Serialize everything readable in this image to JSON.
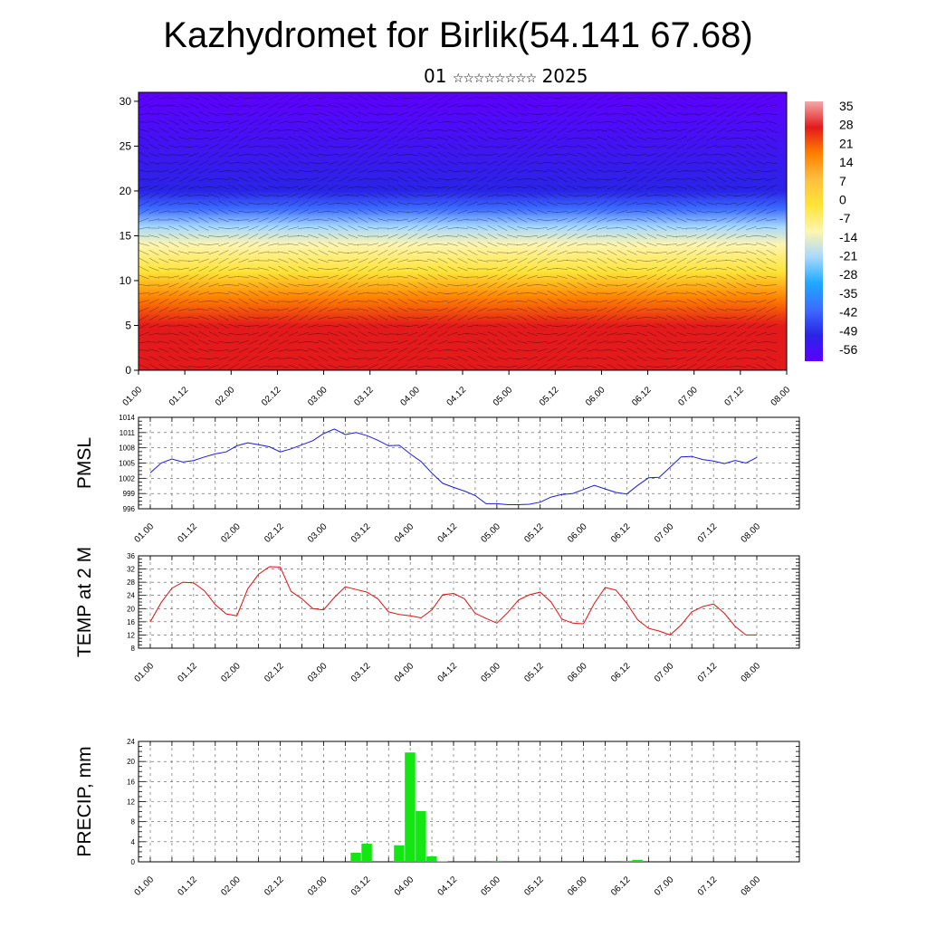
{
  "title": "Kazhydromet for Birlik(54.141 67.68)",
  "subtitle": {
    "day": "01",
    "month_glyphs": "☆☆☆☆☆☆☆☆",
    "year": "2025"
  },
  "time_axis_labels": [
    "01.00",
    "01.12",
    "02.00",
    "02.12",
    "03.00",
    "03.12",
    "04.00",
    "04.12",
    "05.00",
    "05.12",
    "06.00",
    "06.12",
    "07.00",
    "07.12",
    "08.00"
  ],
  "chart_data": [
    {
      "type": "heatmap",
      "name": "cross-section",
      "x_ticks": [
        "01.00",
        "01.12",
        "02.00",
        "02.12",
        "03.00",
        "03.12",
        "04.00",
        "04.12",
        "05.00",
        "05.12",
        "06.00",
        "06.12",
        "07.00",
        "07.12",
        "08.00"
      ],
      "y_ticks": [
        0,
        5,
        10,
        15,
        20,
        25,
        30
      ],
      "ylim": [
        0,
        31
      ],
      "colorbar": {
        "labels": [
          "35",
          "28",
          "21",
          "14",
          "7",
          "0",
          "-7",
          "-14",
          "-21",
          "-28",
          "-35",
          "-42",
          "-49",
          "-56"
        ],
        "colors": [
          "#f4a9a9",
          "#e31a1c",
          "#ff7f00",
          "#fdbf3f",
          "#ffe438",
          "#fff5b0",
          "#a6d8ff",
          "#1ea9ff",
          "#3c6cff",
          "#2a24e6",
          "#5e00ff"
        ]
      },
      "profile": [
        {
          "y": 0,
          "value": 25
        },
        {
          "y": 5,
          "value": 24
        },
        {
          "y": 8,
          "value": 14
        },
        {
          "y": 11,
          "value": 3
        },
        {
          "y": 14,
          "value": -8
        },
        {
          "y": 16,
          "value": -20
        },
        {
          "y": 18,
          "value": -36
        },
        {
          "y": 20,
          "value": -46
        },
        {
          "y": 31,
          "value": -56
        }
      ]
    },
    {
      "type": "line",
      "ylabel": "PMSL",
      "ylim": [
        996,
        1014
      ],
      "y_ticks": [
        "996",
        "999",
        "1002",
        "1005",
        "1008",
        "1011",
        "1014"
      ],
      "line_color": "#1a1adc",
      "x": [
        0,
        3,
        6,
        9,
        12,
        15,
        18,
        21,
        24,
        27,
        30,
        33,
        36,
        39,
        42,
        45,
        48,
        51,
        54,
        57,
        60,
        63,
        66,
        69,
        72,
        75,
        78,
        81,
        84,
        87,
        90,
        93,
        96,
        99,
        102,
        105,
        108,
        111,
        114,
        117,
        120,
        123,
        126,
        129,
        132,
        135,
        138,
        141,
        144,
        147,
        150,
        153,
        156,
        159,
        162,
        165,
        168
      ],
      "values": [
        1003.1,
        1005.0,
        1005.8,
        1005.2,
        1005.5,
        1006.2,
        1006.8,
        1007.2,
        1008.4,
        1009.0,
        1008.6,
        1008.2,
        1007.2,
        1007.8,
        1008.6,
        1009.4,
        1010.8,
        1011.7,
        1010.6,
        1011.0,
        1010.4,
        1009.5,
        1008.4,
        1008.5,
        1006.8,
        1005.3,
        1003.0,
        1001.0,
        1000.2,
        999.5,
        998.6,
        997.0,
        997.0,
        996.8,
        996.8,
        996.9,
        997.3,
        998.3,
        998.8,
        999.0,
        999.8,
        1000.6,
        999.9,
        999.2,
        998.9,
        1000.6,
        1002.1,
        1002.2,
        1004.2,
        1006.2,
        1006.3,
        1005.7,
        1005.4,
        1004.9,
        1005.5,
        1005.0,
        1006.1
      ]
    },
    {
      "type": "line",
      "ylabel": "TEMP at 2 M",
      "ylim": [
        8,
        36
      ],
      "y_ticks": [
        "8",
        "12",
        "16",
        "20",
        "24",
        "28",
        "32",
        "36"
      ],
      "line_color": "#e01010",
      "x": [
        0,
        3,
        6,
        9,
        12,
        15,
        18,
        21,
        24,
        27,
        30,
        33,
        36,
        39,
        42,
        45,
        48,
        51,
        54,
        57,
        60,
        63,
        66,
        69,
        72,
        75,
        78,
        81,
        84,
        87,
        90,
        93,
        96,
        99,
        102,
        105,
        108,
        111,
        114,
        117,
        120,
        123,
        126,
        129,
        132,
        135,
        138,
        141,
        144,
        147,
        150,
        153,
        156,
        159,
        162,
        165,
        168
      ],
      "values": [
        16.0,
        21.8,
        26.2,
        28.0,
        27.8,
        25.4,
        21.2,
        18.4,
        17.8,
        26.0,
        30.4,
        32.7,
        32.6,
        25.2,
        23.0,
        20.0,
        19.6,
        23.4,
        26.6,
        25.8,
        25.0,
        23.0,
        19.0,
        18.2,
        17.8,
        17.2,
        19.6,
        24.2,
        24.6,
        23.0,
        18.6,
        17.0,
        15.6,
        18.8,
        22.6,
        24.2,
        25.0,
        22.0,
        16.8,
        15.6,
        15.4,
        21.6,
        26.4,
        25.6,
        21.6,
        16.6,
        14.0,
        13.2,
        12.0,
        15.0,
        19.0,
        20.6,
        21.4,
        18.6,
        14.6,
        12.0,
        12.0
      ]
    },
    {
      "type": "bar",
      "ylabel": "PRECIP, mm",
      "ylim": [
        0,
        24
      ],
      "y_ticks": [
        "0",
        "4",
        "8",
        "12",
        "16",
        "20",
        "24"
      ],
      "bar_color": "#14e614",
      "bars": [
        {
          "x": 57,
          "value": 1.8
        },
        {
          "x": 60,
          "value": 3.6
        },
        {
          "x": 69,
          "value": 3.3
        },
        {
          "x": 72,
          "value": 21.8
        },
        {
          "x": 75,
          "value": 10.1
        },
        {
          "x": 78,
          "value": 1.1
        },
        {
          "x": 81,
          "value": 0.1
        },
        {
          "x": 96,
          "value": 0.2
        },
        {
          "x": 132,
          "value": 0.2
        },
        {
          "x": 135,
          "value": 0.4
        }
      ]
    }
  ]
}
